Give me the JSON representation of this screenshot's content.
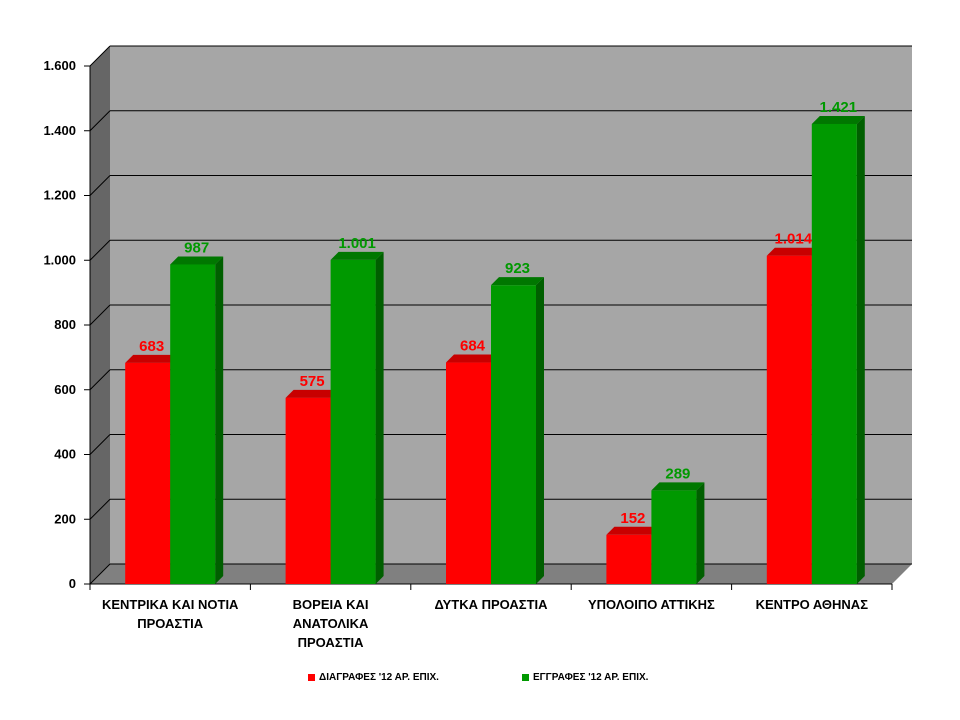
{
  "chart_data": {
    "type": "bar",
    "categories": [
      "ΚΕΝΤΡΙΚΑ ΚΑΙ ΝΟΤΙΑ ΠΡΟΑΣΤΙΑ",
      "ΒΟΡΕΙΑ ΚΑΙ ΑΝΑΤΟΛΙΚΑ ΠΡΟΑΣΤΙΑ",
      "ΔΥΤΚΑ ΠΡΟΑΣΤΙΑ",
      "ΥΠΟΛΟΙΠΟ ΑΤΤΙΚΗΣ",
      "ΚΕΝΤΡΟ ΑΘΗΝΑΣ"
    ],
    "category_lines": [
      [
        "ΚΕΝΤΡΙΚΑ ΚΑΙ ΝΟΤΙΑ",
        "ΠΡΟΑΣΤΙΑ"
      ],
      [
        "ΒΟΡΕΙΑ ΚΑΙ",
        "ΑΝΑΤΟΛΙΚΑ",
        "ΠΡΟΑΣΤΙΑ"
      ],
      [
        "ΔΥΤΚΑ ΠΡΟΑΣΤΙΑ"
      ],
      [
        "ΥΠΟΛΟΙΠΟ ΑΤΤΙΚΗΣ"
      ],
      [
        "ΚΕΝΤΡΟ ΑΘΗΝΑΣ"
      ]
    ],
    "series": [
      {
        "name": "ΔΙΑΓΡΑΦΕΣ '12 ΑΡ. ΕΠΙΧ.",
        "color": "#ff0000",
        "side_color": "#b00000",
        "top_color": "#c80000",
        "values": [
          683,
          575,
          684,
          152,
          1014
        ],
        "labels": [
          "683",
          "575",
          "684",
          "152",
          "1.014"
        ]
      },
      {
        "name": "ΕΓΓΡΑΦΕΣ '12 ΑΡ. ΕΠΙΧ.",
        "color": "#009900",
        "side_color": "#005f00",
        "top_color": "#007700",
        "values": [
          987,
          1001,
          923,
          289,
          1421
        ],
        "labels": [
          "987",
          "1.001",
          "923",
          "289",
          "1.421"
        ]
      }
    ],
    "y_ticks": [
      0,
      200,
      400,
      600,
      800,
      1000,
      1200,
      1400,
      1600
    ],
    "y_tick_labels": [
      "0",
      "200",
      "400",
      "600",
      "800",
      "1.000",
      "1.200",
      "1.400",
      "1.600"
    ],
    "ylim": [
      0,
      1600
    ],
    "grid": true,
    "legend_position": "bottom",
    "title": "",
    "xlabel": "",
    "ylabel": "",
    "colors": {
      "plot_background": "#a6a6a6",
      "left_wall": "#666666",
      "floor": "#808080",
      "gridline": "#000000"
    }
  }
}
